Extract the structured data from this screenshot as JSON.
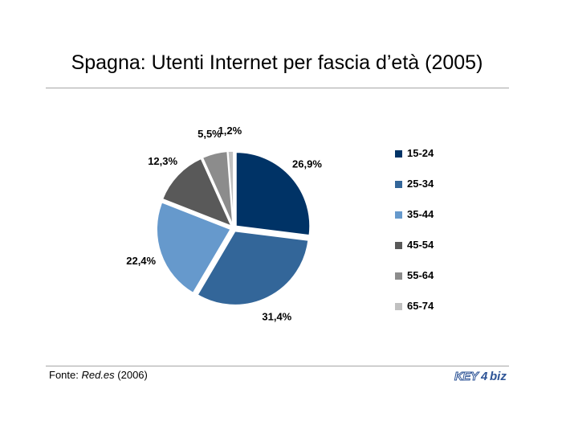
{
  "title": "Spagna: Utenti Internet per fascia d’età (2005)",
  "source": {
    "prefix": "Fonte: ",
    "name": "Red.es",
    "suffix": " (2006)"
  },
  "logo": {
    "part1": "KEY",
    "part2": "4",
    "part3": "biz"
  },
  "chart_data": {
    "type": "pie",
    "categories": [
      "15-24",
      "25-34",
      "35-44",
      "45-54",
      "55-64",
      "65-74"
    ],
    "values": [
      26.9,
      31.4,
      22.4,
      12.3,
      5.5,
      1.2
    ],
    "labels": [
      "26,9%",
      "31,4%",
      "22,4%",
      "12,3%",
      "5,5%",
      "1,2%"
    ],
    "colors": [
      "#003366",
      "#336699",
      "#6699cc",
      "#595959",
      "#8c8c8c",
      "#c0c0c0"
    ],
    "title": "Spagna: Utenti Internet per fascia d’età (2005)",
    "legend_position": "right",
    "exploded": true,
    "start_angle": "12 o'clock, clockwise"
  }
}
